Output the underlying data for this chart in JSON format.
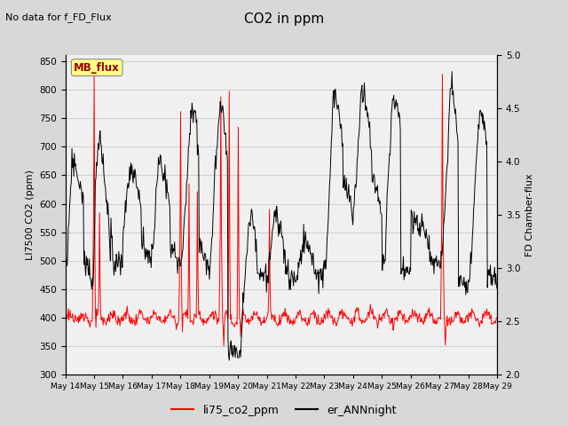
{
  "title": "CO2 in ppm",
  "ylabel_left": "LI7500 CO2 (ppm)",
  "ylabel_right": "FD Chamber-flux",
  "ylim_left": [
    300,
    860
  ],
  "ylim_right": [
    2.0,
    5.0
  ],
  "no_data_text": "No data for f_FD_Flux",
  "mb_flux_label": "MB_flux",
  "legend_labels": [
    "li75_co2_ppm",
    "er_ANNnight"
  ],
  "line_colors": [
    "#ff0000",
    "#000000"
  ],
  "background_color": "#d8d8d8",
  "plot_background": "#f0f0f0",
  "yticks_left": [
    300,
    350,
    400,
    450,
    500,
    550,
    600,
    650,
    700,
    750,
    800,
    850
  ],
  "yticks_right": [
    2.0,
    2.5,
    3.0,
    3.5,
    4.0,
    4.5,
    5.0
  ],
  "x_days": [
    "May 14",
    "May 15",
    "May 16",
    "May 17",
    "May 18",
    "May 19",
    "May 20",
    "May 21",
    "May 22",
    "May 23",
    "May 24",
    "May 25",
    "May 26",
    "May 27",
    "May 28",
    "May 29"
  ]
}
